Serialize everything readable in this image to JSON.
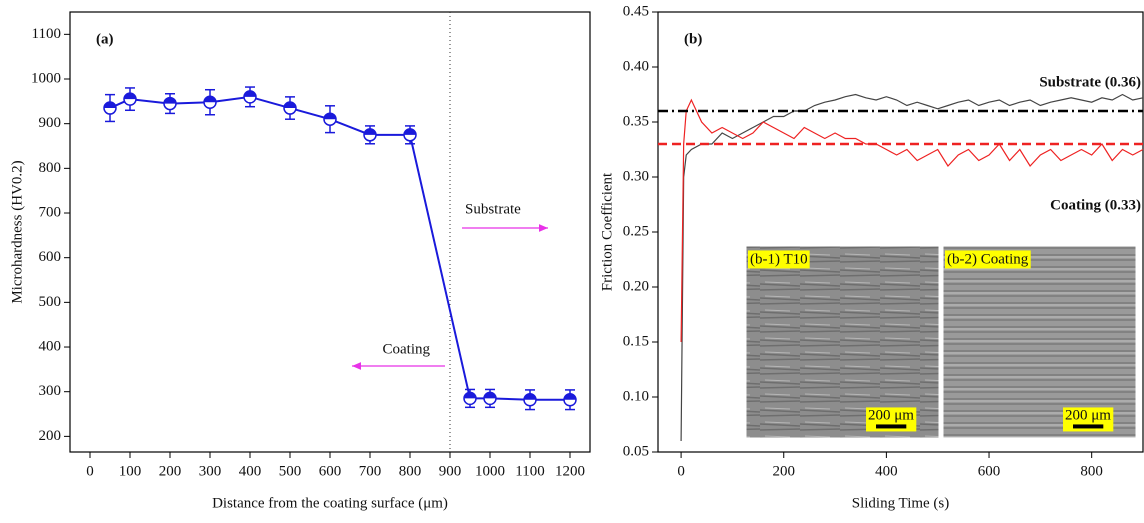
{
  "chart_data": [
    {
      "type": "line",
      "title": "(a)",
      "xlabel": "Distance from the coating surface  (μm)",
      "ylabel": "Microhardness (HV0.2)",
      "x": [
        50,
        100,
        200,
        300,
        400,
        500,
        600,
        700,
        800,
        950,
        1000,
        1100,
        1200
      ],
      "values": [
        935,
        955,
        945,
        948,
        960,
        935,
        910,
        875,
        875,
        285,
        285,
        282,
        282
      ],
      "errors": [
        30,
        25,
        22,
        28,
        22,
        25,
        30,
        20,
        20,
        20,
        20,
        22,
        22
      ],
      "color": "#1a1adb",
      "xlim": [
        -50,
        1250
      ],
      "ylim": [
        165,
        1150
      ],
      "xticks": [
        0,
        100,
        200,
        300,
        400,
        500,
        600,
        700,
        800,
        900,
        1000,
        1100,
        1200
      ],
      "yticks": [
        200,
        300,
        400,
        500,
        600,
        700,
        800,
        900,
        1000,
        1100
      ],
      "vline": 900,
      "annotations": [
        "Substrate",
        "Coating"
      ],
      "annotation_color": "#e832e8"
    },
    {
      "type": "line",
      "title": "(b)",
      "xlabel": "Sliding Time (s)",
      "ylabel": "Friction Coefficient",
      "x": [
        0,
        5,
        10,
        20,
        40,
        60,
        80,
        100,
        120,
        140,
        160,
        180,
        200,
        220,
        240,
        260,
        280,
        300,
        320,
        340,
        360,
        380,
        400,
        420,
        440,
        460,
        480,
        500,
        520,
        540,
        560,
        580,
        600,
        620,
        640,
        660,
        680,
        700,
        720,
        740,
        760,
        780,
        800,
        820,
        840,
        860,
        880,
        900
      ],
      "series": [
        {
          "color": "#444444",
          "values": [
            0.06,
            0.3,
            0.32,
            0.325,
            0.33,
            0.33,
            0.34,
            0.335,
            0.34,
            0.345,
            0.35,
            0.355,
            0.355,
            0.36,
            0.36,
            0.365,
            0.368,
            0.37,
            0.373,
            0.375,
            0.372,
            0.37,
            0.373,
            0.37,
            0.365,
            0.368,
            0.365,
            0.362,
            0.365,
            0.368,
            0.37,
            0.365,
            0.368,
            0.37,
            0.365,
            0.368,
            0.37,
            0.365,
            0.368,
            0.37,
            0.372,
            0.37,
            0.368,
            0.372,
            0.37,
            0.375,
            0.37,
            0.372
          ]
        },
        {
          "color": "#ee2222",
          "values": [
            0.15,
            0.33,
            0.36,
            0.37,
            0.35,
            0.34,
            0.345,
            0.34,
            0.335,
            0.34,
            0.35,
            0.345,
            0.34,
            0.335,
            0.345,
            0.34,
            0.335,
            0.34,
            0.335,
            0.335,
            0.33,
            0.33,
            0.325,
            0.32,
            0.325,
            0.315,
            0.32,
            0.325,
            0.31,
            0.32,
            0.325,
            0.315,
            0.32,
            0.33,
            0.315,
            0.325,
            0.31,
            0.32,
            0.325,
            0.315,
            0.32,
            0.325,
            0.32,
            0.33,
            0.315,
            0.325,
            0.32,
            0.325
          ]
        }
      ],
      "reference_lines": [
        {
          "value": 0.36,
          "color": "#000000",
          "dash": "10 4 2 4",
          "label": "Substrate (0.36)"
        },
        {
          "value": 0.33,
          "color": "#ee2222",
          "dash": "9 5",
          "label": "Coating (0.33)"
        }
      ],
      "xlim": [
        -45,
        900
      ],
      "ylim": [
        0.05,
        0.45
      ],
      "xticks": [
        0,
        200,
        400,
        600,
        800
      ],
      "yticks": [
        0.05,
        {
          "value": 0.1,
          "label": "0.10"
        },
        0.15,
        {
          "value": 0.2,
          "label": "0.20"
        },
        0.25,
        {
          "value": 0.3,
          "label": "0.30"
        },
        0.35,
        {
          "value": 0.4,
          "label": "0.40"
        },
        0.45
      ],
      "insets": [
        {
          "label": "(b-1) T10",
          "scale": "200 μm"
        },
        {
          "label": "(b-2) Coating",
          "scale": "200 μm"
        }
      ]
    }
  ]
}
